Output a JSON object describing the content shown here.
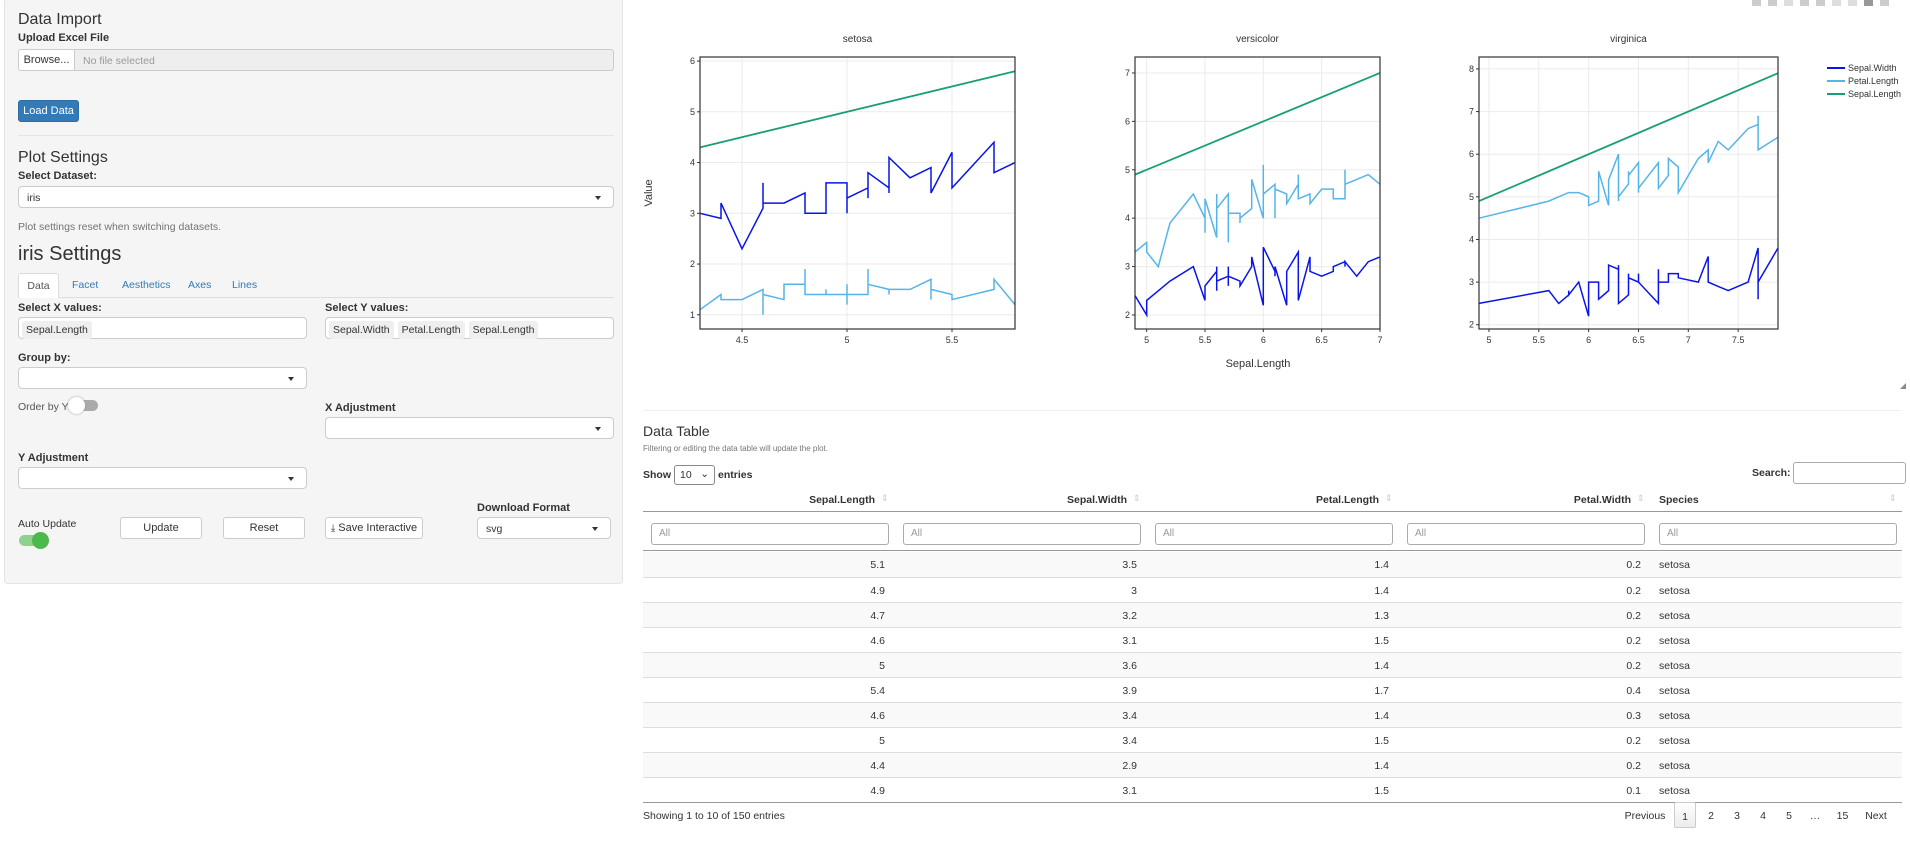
{
  "sidebar": {
    "import_title": "Data Import",
    "upload_label": "Upload Excel File",
    "browse_label": "Browse...",
    "file_placeholder": "No file selected",
    "load_label": "Load Data",
    "plot_settings_title": "Plot Settings",
    "dataset_label": "Select Dataset:",
    "dataset_value": "iris",
    "help_text": "Plot settings reset when switching datasets.",
    "settings_title": "iris Settings",
    "tabs": [
      {
        "label": "Data",
        "active": true
      },
      {
        "label": "Facet"
      },
      {
        "label": "Aesthetics"
      },
      {
        "label": "Axes"
      },
      {
        "label": "Lines"
      }
    ],
    "x_label": "Select X values:",
    "x_values": [
      "Sepal.Length"
    ],
    "y_label": "Select Y values:",
    "y_values": [
      "Sepal.Width",
      "Petal.Length",
      "Sepal.Length"
    ],
    "group_label": "Group by:",
    "group_value": "",
    "order_label": "Order by Y",
    "order_on": false,
    "xadj_label": "X Adjustment",
    "xadj_value": "",
    "yadj_label": "Y Adjustment",
    "yadj_value": "",
    "auto_label": "Auto Update",
    "auto_on": true,
    "update_label": "Update",
    "reset_label": "Reset",
    "save_label": "Save Interactive",
    "save_icon": "download-icon",
    "format_label": "Download Format",
    "format_value": "svg"
  },
  "chart_data": {
    "type": "line",
    "facet_by": "Species",
    "xlabel": "Sepal.Length",
    "ylabel": "Value",
    "legend_placement": "right",
    "grid": true,
    "series": [
      {
        "name": "Sepal.Width",
        "color": "#0a14e8"
      },
      {
        "name": "Petal.Length",
        "color": "#56b4e9"
      },
      {
        "name": "Sepal.Length",
        "color": "#1a9e77"
      }
    ],
    "panels": [
      {
        "title": "setosa",
        "xlim": [
          4.3,
          5.8
        ],
        "ylim": [
          0.72,
          6.08
        ],
        "xticks": [
          4.5,
          5,
          5.5
        ],
        "yticks": [
          1,
          2,
          3,
          4,
          5,
          6
        ],
        "points": [
          [
            5.1,
            3.5,
            1.4
          ],
          [
            4.9,
            3.0,
            1.4
          ],
          [
            4.7,
            3.2,
            1.3
          ],
          [
            4.6,
            3.1,
            1.5
          ],
          [
            5.0,
            3.6,
            1.4
          ],
          [
            5.4,
            3.9,
            1.7
          ],
          [
            4.6,
            3.4,
            1.4
          ],
          [
            5.0,
            3.4,
            1.5
          ],
          [
            4.4,
            2.9,
            1.4
          ],
          [
            4.9,
            3.1,
            1.5
          ],
          [
            5.4,
            3.7,
            1.5
          ],
          [
            4.8,
            3.4,
            1.6
          ],
          [
            4.8,
            3.0,
            1.4
          ],
          [
            4.3,
            3.0,
            1.1
          ],
          [
            5.8,
            4.0,
            1.2
          ],
          [
            5.7,
            4.4,
            1.5
          ],
          [
            5.4,
            3.9,
            1.3
          ],
          [
            5.1,
            3.5,
            1.4
          ],
          [
            5.7,
            3.8,
            1.7
          ],
          [
            5.1,
            3.8,
            1.5
          ],
          [
            5.4,
            3.4,
            1.7
          ],
          [
            5.1,
            3.7,
            1.5
          ],
          [
            4.6,
            3.6,
            1.0
          ],
          [
            5.1,
            3.3,
            1.7
          ],
          [
            4.8,
            3.4,
            1.9
          ],
          [
            5.0,
            3.0,
            1.6
          ],
          [
            5.0,
            3.4,
            1.6
          ],
          [
            5.2,
            3.5,
            1.5
          ],
          [
            5.2,
            3.4,
            1.4
          ],
          [
            4.7,
            3.2,
            1.6
          ],
          [
            4.8,
            3.1,
            1.6
          ],
          [
            5.4,
            3.4,
            1.5
          ],
          [
            5.2,
            4.1,
            1.5
          ],
          [
            5.5,
            4.2,
            1.4
          ],
          [
            4.9,
            3.1,
            1.5
          ],
          [
            5.0,
            3.2,
            1.2
          ],
          [
            5.5,
            3.5,
            1.3
          ],
          [
            4.9,
            3.6,
            1.4
          ],
          [
            4.4,
            3.0,
            1.3
          ],
          [
            5.1,
            3.4,
            1.5
          ],
          [
            5.0,
            3.5,
            1.3
          ],
          [
            4.5,
            2.3,
            1.3
          ],
          [
            4.4,
            3.2,
            1.3
          ],
          [
            5.0,
            3.5,
            1.6
          ],
          [
            5.1,
            3.8,
            1.9
          ],
          [
            4.8,
            3.0,
            1.4
          ],
          [
            5.1,
            3.8,
            1.6
          ],
          [
            4.6,
            3.2,
            1.4
          ],
          [
            5.3,
            3.7,
            1.5
          ],
          [
            5.0,
            3.3,
            1.4
          ]
        ]
      },
      {
        "title": "versicolor",
        "xlim": [
          4.9,
          7.0
        ],
        "ylim": [
          1.71,
          7.33
        ],
        "xticks": [
          5,
          5.5,
          6,
          6.5,
          7
        ],
        "yticks": [
          2,
          3,
          4,
          5,
          6,
          7
        ],
        "points": [
          [
            7.0,
            3.2,
            4.7
          ],
          [
            6.4,
            3.2,
            4.5
          ],
          [
            6.9,
            3.1,
            4.9
          ],
          [
            5.5,
            2.3,
            4.0
          ],
          [
            6.5,
            2.8,
            4.6
          ],
          [
            5.7,
            2.8,
            4.5
          ],
          [
            6.3,
            3.3,
            4.7
          ],
          [
            4.9,
            2.4,
            3.3
          ],
          [
            6.6,
            2.9,
            4.6
          ],
          [
            5.2,
            2.7,
            3.9
          ],
          [
            5.0,
            2.0,
            3.5
          ],
          [
            5.9,
            3.0,
            4.2
          ],
          [
            6.0,
            2.2,
            4.0
          ],
          [
            6.1,
            2.9,
            4.7
          ],
          [
            5.6,
            2.9,
            3.6
          ],
          [
            6.7,
            3.1,
            4.4
          ],
          [
            5.6,
            3.0,
            4.5
          ],
          [
            5.8,
            2.7,
            4.1
          ],
          [
            6.2,
            2.2,
            4.5
          ],
          [
            5.6,
            2.5,
            3.9
          ],
          [
            5.9,
            3.2,
            4.8
          ],
          [
            6.1,
            2.8,
            4.0
          ],
          [
            6.3,
            2.5,
            4.9
          ],
          [
            6.1,
            2.8,
            4.7
          ],
          [
            6.4,
            2.9,
            4.3
          ],
          [
            6.6,
            3.0,
            4.4
          ],
          [
            6.8,
            2.8,
            4.8
          ],
          [
            6.7,
            3.0,
            5.0
          ],
          [
            6.0,
            2.9,
            4.5
          ],
          [
            5.7,
            2.6,
            3.5
          ],
          [
            5.5,
            2.4,
            3.8
          ],
          [
            5.5,
            2.4,
            3.7
          ],
          [
            5.8,
            2.7,
            3.9
          ],
          [
            6.0,
            2.7,
            5.1
          ],
          [
            5.4,
            3.0,
            4.5
          ],
          [
            6.0,
            3.4,
            4.5
          ],
          [
            6.7,
            3.1,
            4.7
          ],
          [
            6.3,
            2.3,
            4.4
          ],
          [
            5.6,
            3.0,
            4.1
          ],
          [
            5.5,
            2.5,
            4.0
          ],
          [
            5.5,
            2.6,
            4.4
          ],
          [
            6.1,
            3.0,
            4.6
          ],
          [
            5.8,
            2.6,
            4.0
          ],
          [
            5.0,
            2.3,
            3.3
          ],
          [
            5.6,
            2.7,
            4.2
          ],
          [
            5.7,
            3.0,
            4.2
          ],
          [
            5.7,
            2.9,
            4.2
          ],
          [
            6.2,
            2.9,
            4.3
          ],
          [
            5.1,
            2.5,
            3.0
          ],
          [
            5.7,
            2.8,
            4.1
          ]
        ]
      },
      {
        "title": "virginica",
        "xlim": [
          4.9,
          7.9
        ],
        "ylim": [
          1.9,
          8.28
        ],
        "xticks": [
          5,
          5.5,
          6,
          6.5,
          7,
          7.5
        ],
        "yticks": [
          2,
          3,
          4,
          5,
          6,
          7,
          8
        ],
        "points": [
          [
            6.3,
            3.3,
            6.0
          ],
          [
            5.8,
            2.7,
            5.1
          ],
          [
            7.1,
            3.0,
            5.9
          ],
          [
            6.3,
            2.9,
            5.6
          ],
          [
            6.5,
            3.0,
            5.8
          ],
          [
            7.6,
            3.0,
            6.6
          ],
          [
            4.9,
            2.5,
            4.5
          ],
          [
            7.3,
            2.9,
            6.3
          ],
          [
            6.7,
            2.5,
            5.8
          ],
          [
            7.2,
            3.6,
            6.1
          ],
          [
            6.5,
            3.2,
            5.1
          ],
          [
            6.4,
            2.7,
            5.3
          ],
          [
            6.8,
            3.0,
            5.5
          ],
          [
            5.7,
            2.5,
            5.0
          ],
          [
            5.8,
            2.8,
            5.1
          ],
          [
            6.4,
            3.2,
            5.3
          ],
          [
            6.5,
            3.0,
            5.5
          ],
          [
            7.7,
            3.8,
            6.7
          ],
          [
            7.7,
            2.6,
            6.9
          ],
          [
            6.0,
            2.2,
            5.0
          ],
          [
            6.9,
            3.2,
            5.7
          ],
          [
            5.6,
            2.8,
            4.9
          ],
          [
            7.7,
            2.8,
            6.7
          ],
          [
            6.3,
            2.7,
            4.9
          ],
          [
            6.7,
            3.3,
            5.7
          ],
          [
            7.2,
            3.2,
            6.0
          ],
          [
            6.2,
            2.8,
            4.8
          ],
          [
            6.1,
            3.0,
            4.9
          ],
          [
            6.4,
            2.8,
            5.6
          ],
          [
            7.2,
            3.0,
            5.8
          ],
          [
            7.4,
            2.8,
            6.1
          ],
          [
            7.9,
            3.8,
            6.4
          ],
          [
            6.4,
            2.8,
            5.6
          ],
          [
            6.3,
            2.8,
            5.1
          ],
          [
            6.1,
            2.6,
            5.6
          ],
          [
            7.7,
            3.0,
            6.1
          ],
          [
            6.3,
            3.4,
            5.6
          ],
          [
            6.4,
            3.1,
            5.5
          ],
          [
            6.0,
            3.0,
            4.8
          ],
          [
            6.9,
            3.1,
            5.4
          ],
          [
            6.7,
            3.1,
            5.6
          ],
          [
            6.9,
            3.1,
            5.1
          ],
          [
            5.8,
            2.7,
            5.1
          ],
          [
            6.8,
            3.2,
            5.9
          ],
          [
            6.7,
            3.3,
            5.7
          ],
          [
            6.7,
            3.0,
            5.2
          ],
          [
            6.3,
            2.5,
            5.0
          ],
          [
            6.5,
            3.0,
            5.2
          ],
          [
            6.2,
            3.4,
            5.4
          ],
          [
            5.9,
            3.0,
            5.1
          ]
        ]
      }
    ]
  },
  "table": {
    "title": "Data Table",
    "subtitle": "Filtering or editing the data table will update the plot.",
    "show_label": "Show",
    "length_value": "10",
    "entries_label": "entries",
    "search_label": "Search:",
    "search_value": "",
    "columns": [
      "Sepal.Length",
      "Sepal.Width",
      "Petal.Length",
      "Petal.Width",
      "Species"
    ],
    "filter_placeholder": "All",
    "rows": [
      [
        "5.1",
        "3.5",
        "1.4",
        "0.2",
        "setosa"
      ],
      [
        "4.9",
        "3",
        "1.4",
        "0.2",
        "setosa"
      ],
      [
        "4.7",
        "3.2",
        "1.3",
        "0.2",
        "setosa"
      ],
      [
        "4.6",
        "3.1",
        "1.5",
        "0.2",
        "setosa"
      ],
      [
        "5",
        "3.6",
        "1.4",
        "0.2",
        "setosa"
      ],
      [
        "5.4",
        "3.9",
        "1.7",
        "0.4",
        "setosa"
      ],
      [
        "4.6",
        "3.4",
        "1.4",
        "0.3",
        "setosa"
      ],
      [
        "5",
        "3.4",
        "1.5",
        "0.2",
        "setosa"
      ],
      [
        "4.4",
        "2.9",
        "1.4",
        "0.2",
        "setosa"
      ],
      [
        "4.9",
        "3.1",
        "1.5",
        "0.1",
        "setosa"
      ]
    ],
    "info": "Showing 1 to 10 of 150 entries",
    "pagination": [
      "Previous",
      "1",
      "2",
      "3",
      "4",
      "5",
      "…",
      "15",
      "Next"
    ],
    "current_page": "1"
  }
}
